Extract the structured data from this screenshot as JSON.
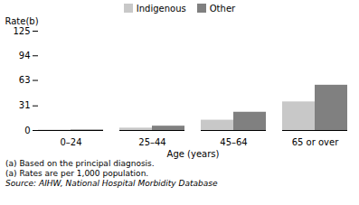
{
  "chart_data": {
    "type": "bar",
    "categories": [
      "0–24",
      "25–44",
      "45–64",
      "65 or over"
    ],
    "series": [
      {
        "name": "Indigenous",
        "color": "#c8c8c8",
        "values": [
          0.5,
          3.0,
          13.0,
          36.0
        ]
      },
      {
        "name": "Other",
        "color": "#808080",
        "values": [
          0.7,
          5.5,
          23.0,
          57.0
        ]
      }
    ],
    "xlabel": "Age (years)",
    "ylabel": "Rate(b)",
    "ylim": [
      0,
      125
    ],
    "yticks": [
      0,
      31,
      63,
      94,
      125
    ],
    "grid": false,
    "legend": "top",
    "annotations": [
      "(a) Based on the principal diagnosis.",
      "(a) Rates are per 1,000 population.",
      "Source: AIHW, National Hospital Morbidity Database"
    ]
  }
}
